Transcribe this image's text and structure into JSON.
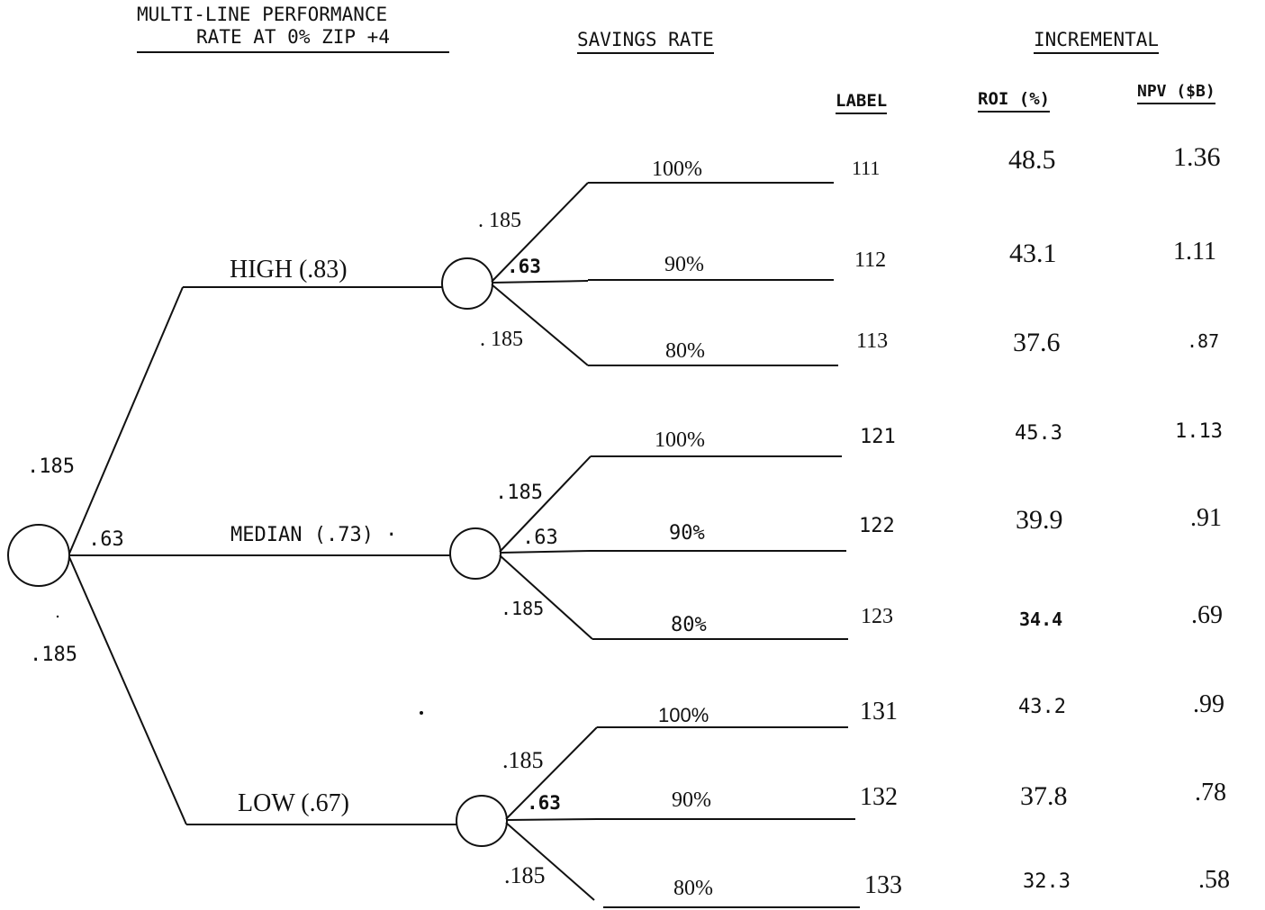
{
  "headers": {
    "performance_line1": "MULTI-LINE PERFORMANCE",
    "performance_line2": "RATE AT 0% ZIP +4",
    "savings_rate": "SAVINGS RATE",
    "incremental": "INCREMENTAL",
    "label": "LABEL",
    "roi": "ROI (%)",
    "npv": "NPV ($B)"
  },
  "root_probabilities": {
    "high": ".185",
    "median": ".63",
    "low": ".185"
  },
  "branches": [
    {
      "name": "HIGH (.83)",
      "outcomes": [
        {
          "prob": ". 185",
          "rate": "100%",
          "label": "111",
          "roi": "48.5",
          "npv": "1.36"
        },
        {
          "prob": ".63",
          "rate": "90%",
          "label": "112",
          "roi": "43.1",
          "npv": "1.11"
        },
        {
          "prob": ". 185",
          "rate": "80%",
          "label": "113",
          "roi": "37.6",
          "npv": ".87"
        }
      ]
    },
    {
      "name": "MEDIAN (.73) ·",
      "outcomes": [
        {
          "prob": ".185",
          "rate": "100%",
          "label": "121",
          "roi": "45.3",
          "npv": "1.13"
        },
        {
          "prob": ".63",
          "rate": "90%",
          "label": "122",
          "roi": "39.9",
          "npv": ".91"
        },
        {
          "prob": ".185",
          "rate": "80%",
          "label": "123",
          "roi": "34.4",
          "npv": ".69"
        }
      ]
    },
    {
      "name": "LOW (.67)",
      "outcomes": [
        {
          "prob": ".185",
          "rate": "100%",
          "label": "131",
          "roi": "43.2",
          "npv": ".99"
        },
        {
          "prob": ".63",
          "rate": "90%",
          "label": "132",
          "roi": "37.8",
          "npv": ".78"
        },
        {
          "prob": ".185",
          "rate": "80%",
          "label": "133",
          "roi": "32.3",
          "npv": ".58"
        }
      ]
    }
  ]
}
